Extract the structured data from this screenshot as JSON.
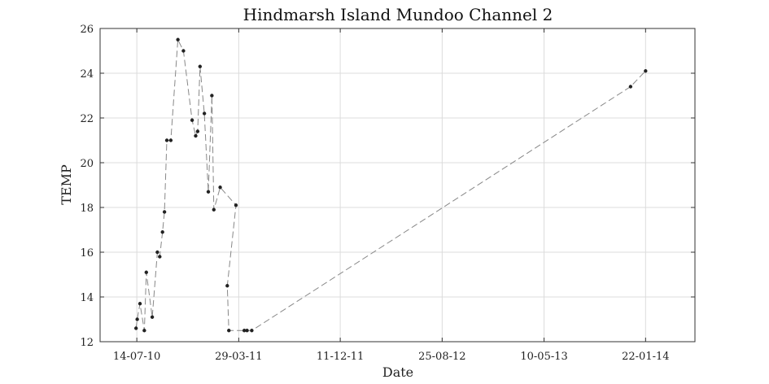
{
  "chart_data": {
    "type": "line",
    "title": "Hindmarsh Island Mundoo Channel 2",
    "xlabel": "Date",
    "ylabel": "TEMP",
    "ylim": [
      12,
      26
    ],
    "yticks": [
      12,
      14,
      16,
      18,
      20,
      22,
      24,
      26
    ],
    "xlim": [
      "2010-04-12",
      "2014-05-27"
    ],
    "xtick_labels": [
      "14-07-10",
      "29-03-11",
      "11-12-11",
      "25-08-12",
      "10-05-13",
      "22-01-14"
    ],
    "xtick_dates": [
      "2010-07-14",
      "2011-03-29",
      "2011-12-11",
      "2012-08-25",
      "2013-05-10",
      "2014-01-22"
    ],
    "grid": true,
    "legend": "none",
    "line_style": "dashed",
    "line_color": "#888888",
    "marker_color": "#222222",
    "series": [
      {
        "x": [
          "2010-07-12",
          "2010-07-15",
          "2010-07-22",
          "2010-08-02",
          "2010-08-07",
          "2010-08-22",
          "2010-09-04",
          "2010-09-10",
          "2010-09-17",
          "2010-09-22",
          "2010-09-28",
          "2010-10-08",
          "2010-10-26",
          "2010-11-09",
          "2010-12-01",
          "2010-12-10",
          "2010-12-15",
          "2010-12-21",
          "2011-01-01",
          "2011-01-11",
          "2011-01-20",
          "2011-01-25",
          "2011-02-10",
          "2011-03-22",
          "2011-02-28",
          "2011-03-04",
          "2011-04-12",
          "2011-04-19",
          "2011-05-01",
          "2013-12-15",
          "2014-01-22"
        ],
        "y": [
          12.6,
          13.0,
          13.7,
          12.5,
          15.1,
          13.1,
          16.0,
          15.8,
          16.9,
          17.8,
          21.0,
          21.0,
          25.5,
          25.0,
          21.9,
          21.2,
          21.4,
          24.3,
          22.2,
          18.7,
          23.0,
          17.9,
          18.9,
          18.1,
          14.5,
          12.5,
          12.5,
          12.5,
          12.5,
          23.4,
          24.1
        ]
      }
    ]
  }
}
